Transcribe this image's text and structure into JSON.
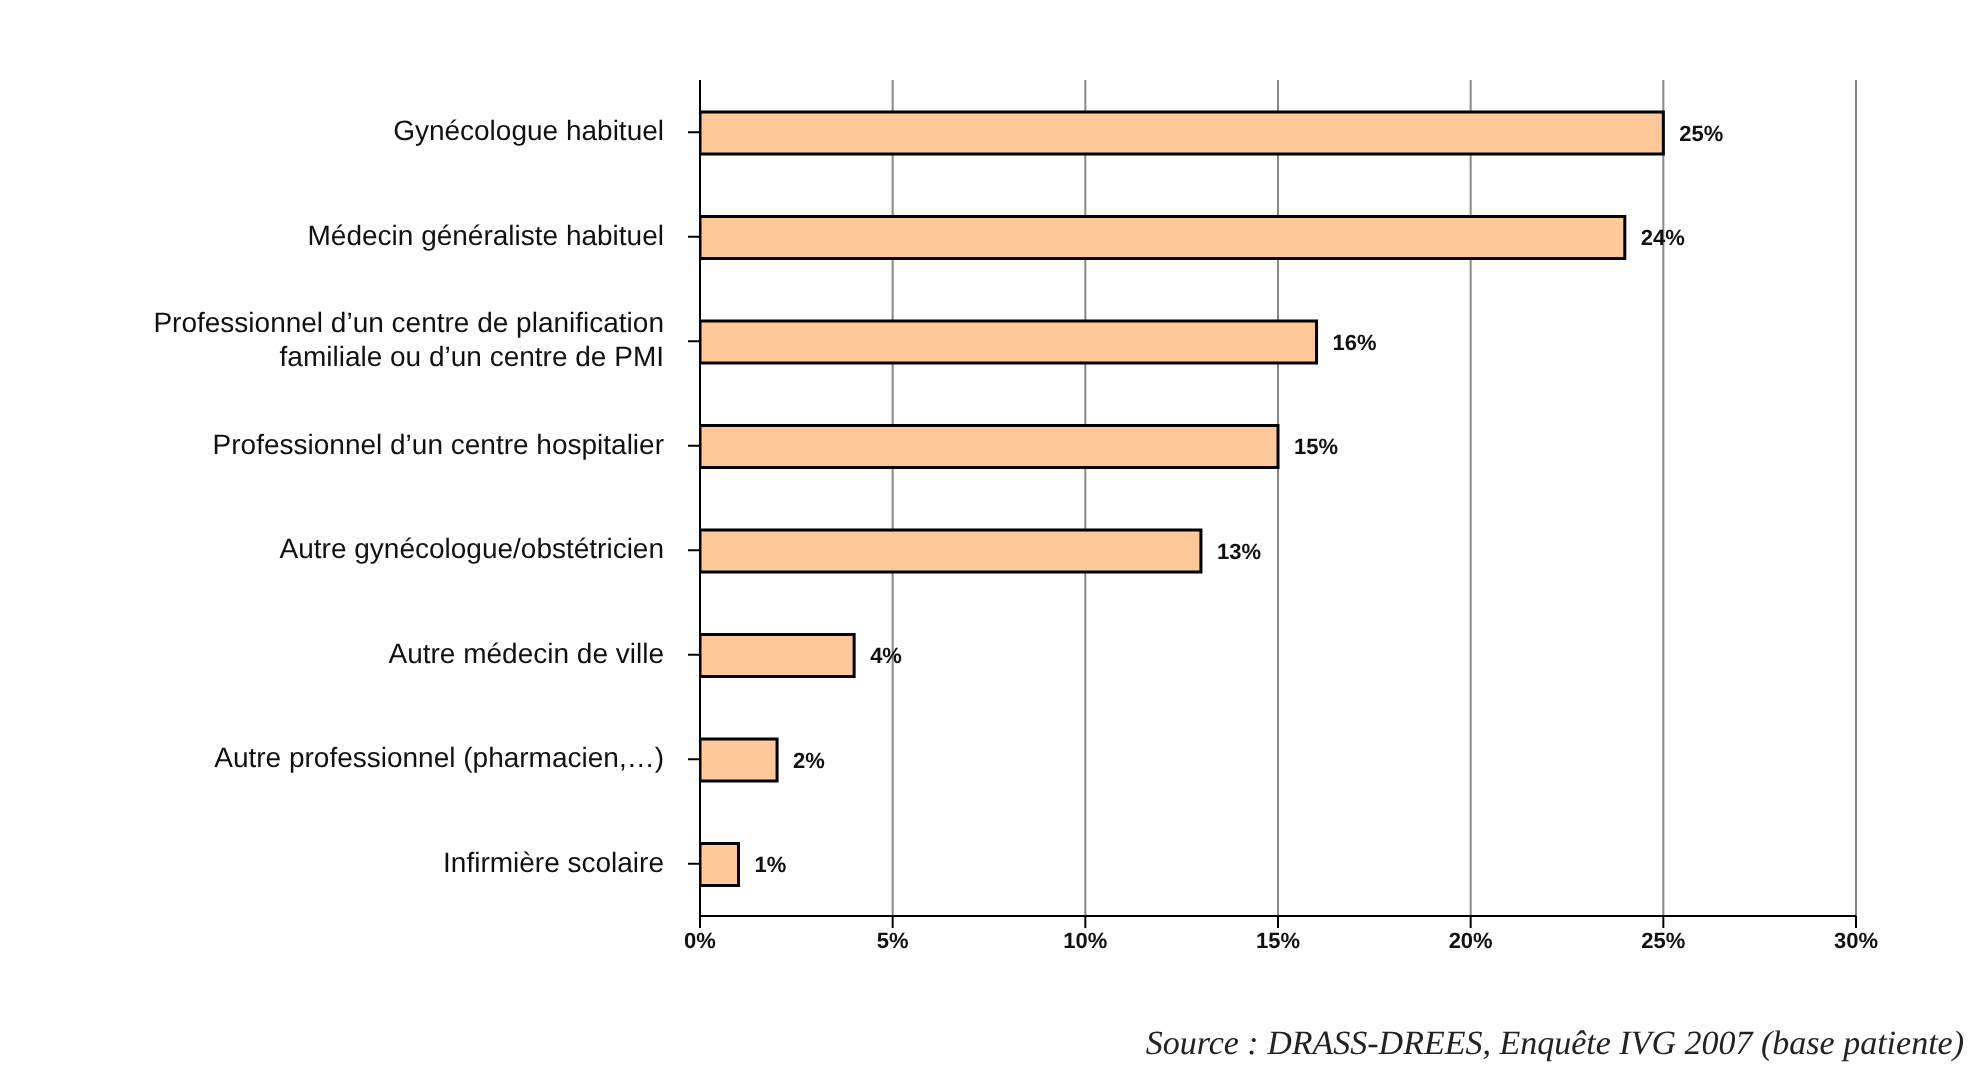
{
  "chart_data": {
    "type": "bar",
    "orientation": "horizontal",
    "categories": [
      "Gynécologue habituel",
      "Médecin généraliste habituel",
      "Professionnel d’un centre de planification familiale ou d’un centre de PMI",
      "Professionnel d’un centre hospitalier",
      "Autre gynécologue/obstétricien",
      "Autre médecin de ville",
      "Autre professionnel (pharmacien,…)",
      "Infirmière scolaire"
    ],
    "values": [
      25,
      24,
      16,
      15,
      13,
      4,
      2,
      1
    ],
    "color": "#ffc899",
    "value_labels": [
      "25%",
      "24%",
      "16%",
      "15%",
      "13%",
      "4%",
      "2%",
      "1%"
    ],
    "xlim": [
      0,
      30
    ],
    "xticks": [
      {
        "value": 0,
        "label": "0%"
      },
      {
        "value": 5,
        "label": "5%"
      },
      {
        "value": 10,
        "label": "10%"
      },
      {
        "value": 15,
        "label": "15%"
      },
      {
        "value": 20,
        "label": "20%"
      },
      {
        "value": 25,
        "label": "25%"
      },
      {
        "value": 30,
        "label": "30%"
      }
    ],
    "grid": "x",
    "annotations": [
      "Source : DRASS-DREES, Enquête IVG 2007 (base patiente)"
    ]
  }
}
